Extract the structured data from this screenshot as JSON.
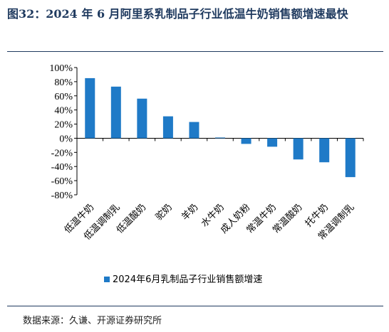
{
  "header": {
    "title": "图32：2024 年 6 月阿里系乳制品子行业低温牛奶销售额增速最快"
  },
  "footer": {
    "source": "数据来源：久谦、开源证券研究所"
  },
  "chart_data": {
    "type": "bar",
    "title": "",
    "xlabel": "",
    "ylabel": "",
    "ylim": [
      -80,
      100
    ],
    "yticks": [
      -80,
      -60,
      -40,
      -20,
      0,
      20,
      40,
      60,
      80,
      100
    ],
    "ytick_suffix": "%",
    "grid": false,
    "legend_position": "bottom-center",
    "categories": [
      "低温牛奶",
      "低温调制乳",
      "低温酸奶",
      "驼奶",
      "羊奶",
      "水牛奶",
      "成人奶粉",
      "常温牛奶",
      "常温酸奶",
      "托牛奶",
      "常温调制乳"
    ],
    "series": [
      {
        "name": "2024年6月乳制品子行业销售额增速",
        "color": "#1f7ac7",
        "values": [
          85,
          73,
          56,
          31,
          23,
          1,
          -8,
          -12,
          -30,
          -34,
          -55
        ]
      }
    ]
  }
}
